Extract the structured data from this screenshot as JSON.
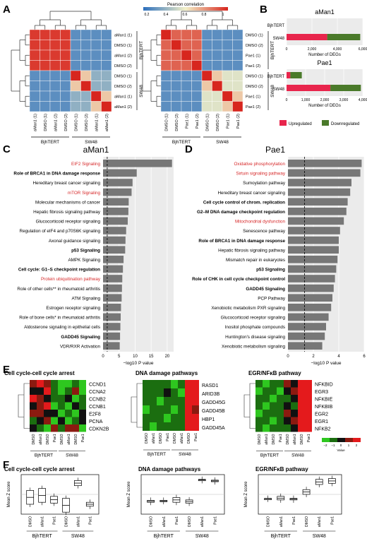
{
  "panels": {
    "A": {
      "label": "A",
      "colorbar_title": "Pearson correlation",
      "colorbar_ticks": [
        "0.2",
        "0.4",
        "0.6",
        "0.8",
        "1"
      ],
      "left": {
        "rows": [
          "aMan1 (1)",
          "DMSO (1)",
          "aMan1 (2)",
          "DMSO (2)",
          "DMSO (1)",
          "DMSO (2)",
          "aMan1 (1)",
          "aMan1 (2)"
        ],
        "cols": [
          "aMan1 (1)",
          "DMSO (1)",
          "aMan1 (2)",
          "DMSO (2)",
          "DMSO (1)",
          "DMSO (2)",
          "aMan1 (1)",
          "aMan1 (2)"
        ],
        "groups": [
          "BjhTERT",
          "SW48"
        ]
      },
      "right": {
        "rows": [
          "DMSO (1)",
          "DMSO (2)",
          "Pae1 (1)",
          "Pae1 (2)",
          "DMSO (1)",
          "DMSO (2)",
          "Pae1 (1)",
          "Pae1 (2)"
        ],
        "cols": [
          "DMSO (1)",
          "DMSO (2)",
          "Pae1 (1)",
          "Pae1 (2)",
          "DMSO (1)",
          "DMSO (2)",
          "Pae1 (1)",
          "Pae1 (2)"
        ],
        "groups": [
          "BjhTERT",
          "SW48"
        ]
      }
    },
    "B": {
      "label": "B",
      "xlabel": "Number of DEGs",
      "charts": [
        {
          "title": "aMan1",
          "rows": [
            "BjhTERT",
            "SW48"
          ],
          "ticks": [
            "0",
            "2,000",
            "4,000",
            "6,000"
          ]
        },
        {
          "title": "Pae1",
          "rows": [
            "BjhTERT",
            "SW48"
          ],
          "ticks": [
            "0",
            "1,000",
            "2,000",
            "3,000",
            "4,000"
          ]
        }
      ],
      "legend": [
        "Upregulated",
        "Downregulated"
      ]
    },
    "C": {
      "label": "C",
      "title": "aMan1"
    },
    "D": {
      "label": "D",
      "title": "Pae1"
    },
    "E": {
      "label": "E",
      "heatmaps": [
        {
          "title": "Cell cycle-cell cycle arrest",
          "genes": [
            "CCND1",
            "CCNA2",
            "CCNB2",
            "CCNB1",
            "E2F8",
            "PCNA",
            "CDKN2B"
          ]
        },
        {
          "title": "DNA damage pathways",
          "genes": [
            "RASD1",
            "ARID3B",
            "GADD45G",
            "GADD45B",
            "HBP1",
            "GADD45A"
          ]
        },
        {
          "title": "EGR/NFκB pathway",
          "genes": [
            "NFKBID",
            "EGR3",
            "NFKBIE",
            "NFKBIB",
            "EGR2",
            "EGR1",
            "NFKB2"
          ]
        }
      ],
      "col_labels": [
        "DMSO",
        "aMan1",
        "DMSO",
        "Pae1",
        "DMSO",
        "aMan1",
        "DMSO",
        "Pae1"
      ],
      "groups": [
        "BjhTERT",
        "SW48"
      ],
      "scale_ticks": [
        "−2",
        "−1",
        "0",
        "1",
        "2"
      ],
      "scale_label": "Value"
    },
    "F": {
      "label": "F",
      "ylabel": "Mean Z score",
      "plots": [
        {
          "title": "Cell cycle-cell cycle arrest"
        },
        {
          "title": "DNA damage pathways"
        },
        {
          "title": "EGR/NFκB pathway"
        }
      ],
      "col_labels": [
        "DMSO",
        "aMan1",
        "Pae1",
        "DMSO",
        "aMan1",
        "Pae1"
      ],
      "groups": [
        "BjhTERT",
        "SW48"
      ]
    }
  },
  "chart_data": [
    {
      "type": "bar",
      "title": "aMan1",
      "categories": [
        "BjhTERT",
        "SW48"
      ],
      "series": [
        {
          "name": "Upregulated",
          "values": [
            0,
            3200
          ]
        },
        {
          "name": "Downregulated",
          "values": [
            0,
            2600
          ]
        }
      ],
      "xlabel": "Number of DEGs",
      "xlim": [
        0,
        6000
      ],
      "colors": {
        "Upregulated": "#e8254c",
        "Downregulated": "#4a7a2a"
      }
    },
    {
      "type": "bar",
      "title": "Pae1",
      "categories": [
        "BjhTERT",
        "SW48"
      ],
      "series": [
        {
          "name": "Upregulated",
          "values": [
            200,
            2300
          ]
        },
        {
          "name": "Downregulated",
          "values": [
            600,
            1600
          ]
        }
      ],
      "xlabel": "Number of DEGs",
      "xlim": [
        0,
        4000
      ]
    },
    {
      "type": "bar",
      "title": "aMan1",
      "xlabel": "−log10 P value",
      "xlim": [
        0,
        22
      ],
      "threshold": 1.3,
      "categories": [
        {
          "name": "EIF2 Signaling",
          "color": "red",
          "bold": false
        },
        {
          "name": "Role of BRCA1 in DNA damage response",
          "color": "black",
          "bold": true
        },
        {
          "name": "Hereditary breast cancer signaling",
          "color": "black",
          "bold": false
        },
        {
          "name": "mTOR Signaling",
          "color": "red",
          "bold": false
        },
        {
          "name": "Molecular mechanisms of cancer",
          "color": "black",
          "bold": false
        },
        {
          "name": "Hepatic fibrosis signaling pathway",
          "color": "black",
          "bold": false
        },
        {
          "name": "Glucocorticoid receptor signaling",
          "color": "black",
          "bold": false
        },
        {
          "name": "Regulation of eIF4 and p70S6K signaling",
          "color": "black",
          "bold": false
        },
        {
          "name": "Axonal guidance signaling",
          "color": "black",
          "bold": false
        },
        {
          "name": "p53 Signaling",
          "color": "black",
          "bold": true
        },
        {
          "name": "AMPK Signaling",
          "color": "black",
          "bold": false
        },
        {
          "name": "Cell cycle: G1–S checkpoint regulation",
          "color": "black",
          "bold": true
        },
        {
          "name": "Protein ubiquitination pathway",
          "color": "red",
          "bold": false
        },
        {
          "name": "Role of other cells** in rheumatoid arthritis",
          "color": "black",
          "bold": false
        },
        {
          "name": "ATM Signaling",
          "color": "black",
          "bold": false
        },
        {
          "name": "Estrogen receptor signaling",
          "color": "black",
          "bold": false
        },
        {
          "name": "Role of bone cells* in rheumatoid arthritis",
          "color": "black",
          "bold": false
        },
        {
          "name": "Aldosterone signaling in epithelial cells",
          "color": "black",
          "bold": false
        },
        {
          "name": "GADD45 Signaling",
          "color": "black",
          "bold": true
        },
        {
          "name": "VDR/RXR Activation",
          "color": "black",
          "bold": false
        }
      ],
      "values": [
        21.5,
        10.5,
        9.2,
        8.9,
        8.0,
        7.9,
        7.7,
        7.2,
        7.0,
        6.9,
        6.4,
        6.2,
        6.0,
        5.9,
        5.8,
        5.6,
        5.5,
        5.4,
        5.3,
        5.2
      ],
      "ticks": [
        "0",
        "5",
        "10",
        "15",
        "20"
      ]
    },
    {
      "type": "bar",
      "title": "Pae1",
      "xlabel": "−log10 P value",
      "xlim": [
        0,
        6
      ],
      "threshold": 1.3,
      "categories": [
        {
          "name": "Oxidative phosphorylation",
          "color": "red",
          "bold": false
        },
        {
          "name": "Sirtuin signaling pathway",
          "color": "red",
          "bold": false
        },
        {
          "name": "Sumoylation pathway",
          "color": "black",
          "bold": false
        },
        {
          "name": "Hereditary breast cancer signaling",
          "color": "black",
          "bold": false
        },
        {
          "name": "Cell cycle control of chrom. replication",
          "color": "black",
          "bold": true
        },
        {
          "name": "G2–M DNA damage checkpoint regulation",
          "color": "black",
          "bold": true
        },
        {
          "name": "Mitochondrial dysfunction",
          "color": "red",
          "bold": false
        },
        {
          "name": "Senescence pathway",
          "color": "black",
          "bold": false
        },
        {
          "name": "Role of BRCA1 in DNA damage response",
          "color": "black",
          "bold": true
        },
        {
          "name": "Hepatic fibrosis signaling pathway",
          "color": "black",
          "bold": false
        },
        {
          "name": "Mismatch repair in eukaryotes",
          "color": "black",
          "bold": false
        },
        {
          "name": "p53 Signaling",
          "color": "black",
          "bold": true
        },
        {
          "name": "Role of CHK in cell cycle checkpoint control",
          "color": "black",
          "bold": true
        },
        {
          "name": "GADD45 Signaling",
          "color": "black",
          "bold": true
        },
        {
          "name": "PCP Pathway",
          "color": "black",
          "bold": false
        },
        {
          "name": "Xenobiotic metabolism PXR signaling",
          "color": "black",
          "bold": false
        },
        {
          "name": "Glucocorticoid receptor signaling",
          "color": "black",
          "bold": false
        },
        {
          "name": "Inositol phosphate compounds",
          "color": "black",
          "bold": false
        },
        {
          "name": "Huntington's disease signaling",
          "color": "black",
          "bold": false
        },
        {
          "name": "Xenobiotic metabolism signaling",
          "color": "black",
          "bold": false
        }
      ],
      "values": [
        5.8,
        5.7,
        5.0,
        4.9,
        4.7,
        4.6,
        4.4,
        4.1,
        4.0,
        4.0,
        3.9,
        3.8,
        3.7,
        3.6,
        3.5,
        3.4,
        3.2,
        3.0,
        2.9,
        2.7
      ],
      "ticks": [
        "0",
        "2",
        "4",
        "6"
      ]
    }
  ]
}
